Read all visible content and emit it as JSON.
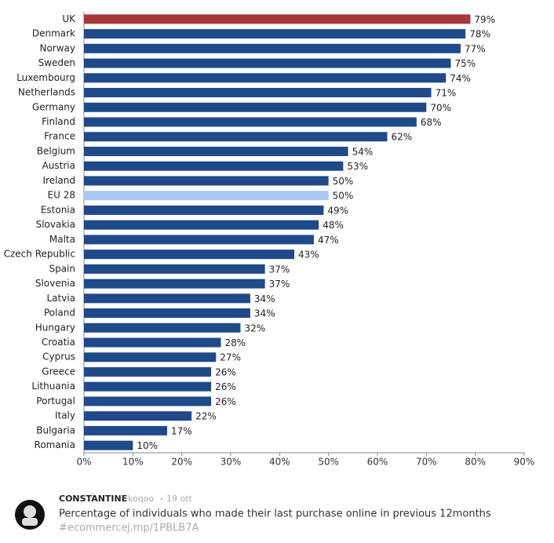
{
  "chart_data": {
    "type": "bar",
    "orientation": "horizontal",
    "categories": [
      "UK",
      "Denmark",
      "Norway",
      "Sweden",
      "Luxembourg",
      "Netherlands",
      "Germany",
      "Finland",
      "France",
      "Belgium",
      "Austria",
      "Ireland",
      "EU 28",
      "Estonia",
      "Slovakia",
      "Malta",
      "Czech Republic",
      "Spain",
      "Slovenia",
      "Latvia",
      "Poland",
      "Hungary",
      "Croatia",
      "Cyprus",
      "Greece",
      "Lithuania",
      "Portugal",
      "Italy",
      "Bulgaria",
      "Romania"
    ],
    "values": [
      79,
      78,
      77,
      75,
      74,
      71,
      70,
      68,
      62,
      54,
      53,
      50,
      50,
      49,
      48,
      47,
      43,
      37,
      37,
      34,
      34,
      32,
      28,
      27,
      26,
      26,
      26,
      22,
      17,
      10
    ],
    "value_labels": [
      "79%",
      "78%",
      "77%",
      "75%",
      "74%",
      "71%",
      "70%",
      "68%",
      "62%",
      "54%",
      "53%",
      "50%",
      "50%",
      "49%",
      "48%",
      "47%",
      "43%",
      "37%",
      "37%",
      "34%",
      "34%",
      "32%",
      "28%",
      "27%",
      "26%",
      "26%",
      "26%",
      "22%",
      "17%",
      "10%"
    ],
    "colors": [
      "#a8383a",
      "#1f4a8a",
      "#1f4a8a",
      "#1f4a8a",
      "#1f4a8a",
      "#1f4a8a",
      "#1f4a8a",
      "#1f4a8a",
      "#1f4a8a",
      "#1f4a8a",
      "#1f4a8a",
      "#1f4a8a",
      "#a9c9f2",
      "#1f4a8a",
      "#1f4a8a",
      "#1f4a8a",
      "#1f4a8a",
      "#1f4a8a",
      "#1f4a8a",
      "#1f4a8a",
      "#1f4a8a",
      "#1f4a8a",
      "#1f4a8a",
      "#1f4a8a",
      "#1f4a8a",
      "#1f4a8a",
      "#1f4a8a",
      "#1f4a8a",
      "#1f4a8a",
      "#1f4a8a"
    ],
    "xlim": [
      0,
      90
    ],
    "xticks": [
      {
        "value": 0,
        "label": "0%"
      },
      {
        "value": 10,
        "label": "10%"
      },
      {
        "value": 20,
        "label": "20%"
      },
      {
        "value": 30,
        "label": "30%"
      },
      {
        "value": 40,
        "label": "40%"
      },
      {
        "value": 50,
        "label": "50%"
      },
      {
        "value": 60,
        "label": "60%"
      },
      {
        "value": 70,
        "label": "70%"
      },
      {
        "value": 80,
        "label": "80%"
      },
      {
        "value": 90,
        "label": "90%"
      }
    ],
    "grid": false
  },
  "tweet": {
    "author": "CONSTANTINE",
    "handle": "koqoo",
    "date": "19 ott",
    "text": "Percentage of individuals who made their last purchase online in previous 12months",
    "hashtag": "#ecommerce",
    "link": "j.mp/1PBLB7A"
  }
}
